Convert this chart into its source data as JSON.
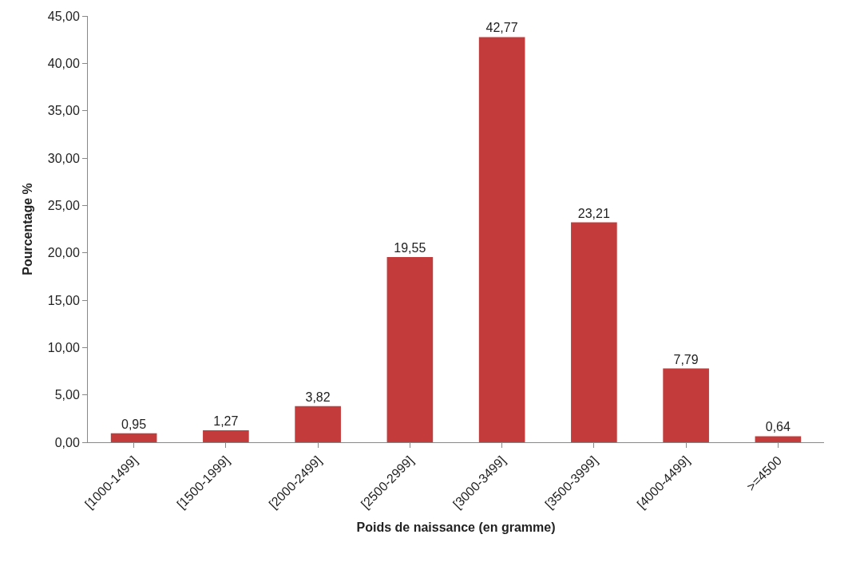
{
  "chart_data": {
    "type": "bar",
    "xlabel": "Poids de naissance (en gramme)",
    "ylabel": "Pourcentage %",
    "categories": [
      "[1000-1499]",
      "[1500-1999]",
      "[2000-2499]",
      "[2500-2999]",
      "[3000-3499]",
      "[3500-3999]",
      "[4000-4499]",
      ">=4500"
    ],
    "values": [
      0.95,
      1.27,
      3.82,
      19.55,
      42.77,
      23.21,
      7.79,
      0.64
    ],
    "value_labels": [
      "0,95",
      "1,27",
      "3,82",
      "19,55",
      "42,77",
      "23,21",
      "7,79",
      "0,64"
    ],
    "color": "#c43b3b",
    "ylim": [
      0,
      45
    ],
    "yticks": [
      {
        "value": 0,
        "label": "0,00"
      },
      {
        "value": 5,
        "label": "5,00"
      },
      {
        "value": 10,
        "label": "10,00"
      },
      {
        "value": 15,
        "label": "15,00"
      },
      {
        "value": 20,
        "label": "20,00"
      },
      {
        "value": 25,
        "label": "25,00"
      },
      {
        "value": 30,
        "label": "30,00"
      },
      {
        "value": 35,
        "label": "35,00"
      },
      {
        "value": 40,
        "label": "40,00"
      },
      {
        "value": 45,
        "label": "45,00"
      }
    ],
    "legend": false
  }
}
